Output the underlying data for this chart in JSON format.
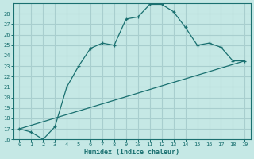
{
  "xlabel": "Humidex (Indice chaleur)",
  "bg_color": "#c5e8e5",
  "grid_color": "#a8cece",
  "line_color": "#1a7070",
  "xlim": [
    -0.5,
    19.5
  ],
  "ylim": [
    16,
    29
  ],
  "xticks": [
    0,
    1,
    2,
    3,
    4,
    5,
    6,
    7,
    8,
    9,
    10,
    11,
    12,
    13,
    14,
    15,
    16,
    17,
    18,
    19
  ],
  "yticks": [
    16,
    17,
    18,
    19,
    20,
    21,
    22,
    23,
    24,
    25,
    26,
    27,
    28
  ],
  "curve_x": [
    0,
    1,
    2,
    3,
    4,
    5,
    6,
    7,
    8,
    9,
    10,
    11,
    12,
    13,
    14,
    15,
    16,
    17,
    18,
    19
  ],
  "curve_y": [
    17.0,
    16.7,
    16.0,
    17.2,
    21.0,
    23.0,
    24.7,
    25.2,
    25.0,
    27.5,
    27.7,
    28.9,
    28.9,
    28.2,
    26.7,
    25.0,
    25.2,
    24.8,
    23.5,
    23.5
  ],
  "line_x": [
    0,
    19
  ],
  "line_y": [
    17.0,
    23.5
  ]
}
